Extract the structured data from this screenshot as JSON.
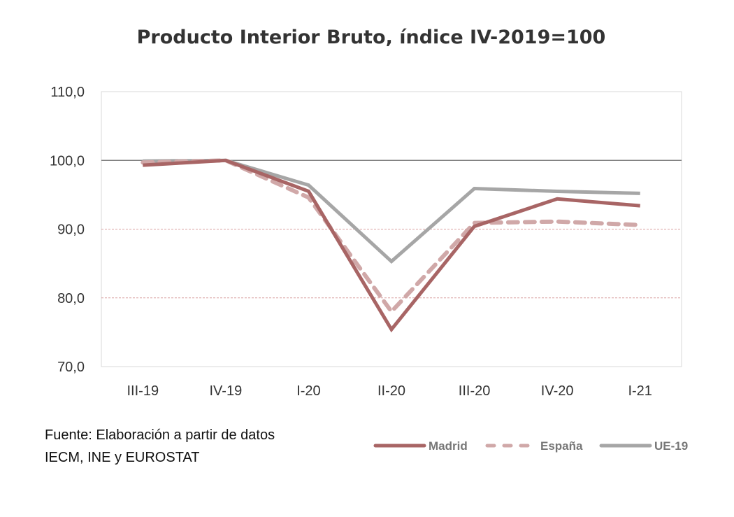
{
  "chart_data": {
    "type": "line",
    "title": "Producto Interior Bruto, índice IV-2019=100",
    "xlabel": "",
    "ylabel": "",
    "categories": [
      "III-19",
      "IV-19",
      "I-20",
      "II-20",
      "III-20",
      "IV-20",
      "I-21"
    ],
    "ylim": [
      70,
      110
    ],
    "yticks": [
      "70,0",
      "80,0",
      "90,0",
      "100,0",
      "110,0"
    ],
    "grid": true,
    "legend_position": "bottom-right",
    "series": [
      {
        "name": "Madrid",
        "color": "#a86565",
        "style": "solid",
        "values": [
          99.3,
          100.0,
          95.5,
          75.4,
          90.4,
          94.4,
          93.4
        ]
      },
      {
        "name": "España",
        "color": "#d0a8a8",
        "style": "dashed",
        "values": [
          99.7,
          100.0,
          94.6,
          78.0,
          90.9,
          91.1,
          90.6
        ]
      },
      {
        "name": "UE-19",
        "color": "#a6a6a6",
        "style": "solid",
        "values": [
          99.9,
          100.0,
          96.4,
          85.3,
          95.9,
          95.5,
          95.2
        ]
      }
    ]
  },
  "source": {
    "line1": "Fuente: Elaboración a partir de datos",
    "line2": "IECM, INE y EUROSTAT"
  }
}
